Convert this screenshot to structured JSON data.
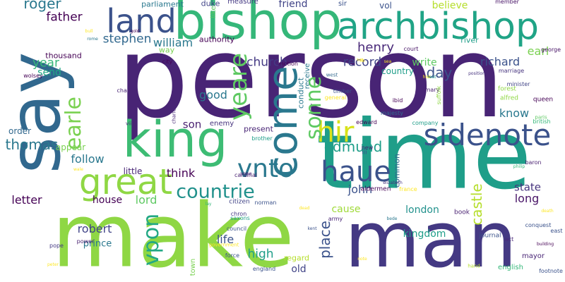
{
  "words": [
    {
      "text": "person",
      "color": "#482475"
    },
    {
      "text": "time",
      "color": "#1f9e89"
    },
    {
      "text": "make",
      "color": "#8fd744"
    },
    {
      "text": "man",
      "color": "#443983"
    },
    {
      "text": "say",
      "color": "#31688e"
    },
    {
      "text": "bishop",
      "color": "#35b779"
    },
    {
      "text": "king",
      "color": "#3dbc74"
    },
    {
      "text": "archbishop",
      "color": "#20a486"
    },
    {
      "text": "land",
      "color": "#3b528b"
    },
    {
      "text": "great",
      "color": "#8fd744"
    },
    {
      "text": "sidenote",
      "color": "#3b528b"
    },
    {
      "text": "come",
      "color": "#2a788e"
    },
    {
      "text": "haue",
      "color": "#3b528b"
    },
    {
      "text": "vnto",
      "color": "#2a788e"
    },
    {
      "text": "countrie",
      "color": "#21918c"
    },
    {
      "text": "hir",
      "color": "#d8e219"
    },
    {
      "text": "yeare",
      "color": "#5ec962"
    },
    {
      "text": "sonne",
      "color": "#5ec962"
    },
    {
      "text": "earle",
      "color": "#7ad151"
    },
    {
      "text": "vpon",
      "color": "#22a884"
    },
    {
      "text": "thomas",
      "color": "#2a788e"
    },
    {
      "text": "stephen",
      "color": "#31688e"
    },
    {
      "text": "william",
      "color": "#2a788e"
    },
    {
      "text": "church",
      "color": "#443983"
    },
    {
      "text": "record",
      "color": "#414487"
    },
    {
      "text": "write",
      "color": "#5ec962"
    },
    {
      "text": "richard",
      "color": "#3b528b"
    },
    {
      "text": "henry",
      "color": "#482878"
    },
    {
      "text": "earl",
      "color": "#7ad151"
    },
    {
      "text": "believe",
      "color": "#b5de2b"
    },
    {
      "text": "roger",
      "color": "#2a788e"
    },
    {
      "text": "father",
      "color": "#440154"
    },
    {
      "text": "year",
      "color": "#35b779"
    },
    {
      "text": "send",
      "color": "#22a884"
    },
    {
      "text": "good",
      "color": "#2a788e"
    },
    {
      "text": "son",
      "color": "#481f70"
    },
    {
      "text": "edmund",
      "color": "#1f9e89"
    },
    {
      "text": "john",
      "color": "#3b528b"
    },
    {
      "text": "day",
      "color": "#3b528b"
    },
    {
      "text": "know",
      "color": "#2a788e"
    },
    {
      "text": "state",
      "color": "#46337e"
    },
    {
      "text": "follow",
      "color": "#2a788e"
    },
    {
      "text": "think",
      "color": "#440154"
    },
    {
      "text": "lord",
      "color": "#5ec962"
    },
    {
      "text": "letter",
      "color": "#440154"
    },
    {
      "text": "house",
      "color": "#440154"
    },
    {
      "text": "robert",
      "color": "#414487"
    },
    {
      "text": "london",
      "color": "#21918c"
    },
    {
      "text": "cause",
      "color": "#a0da39"
    },
    {
      "text": "castle",
      "color": "#b5de2b"
    },
    {
      "text": "long",
      "color": "#481467"
    },
    {
      "text": "life",
      "color": "#3b528b"
    },
    {
      "text": "place",
      "color": "#3b528b"
    },
    {
      "text": "kingdom",
      "color": "#1f9e89"
    },
    {
      "text": "high",
      "color": "#1f9e89"
    },
    {
      "text": "old",
      "color": "#414487"
    },
    {
      "text": "prince",
      "color": "#2a788e"
    },
    {
      "text": "little",
      "color": "#482475"
    },
    {
      "text": "order",
      "color": "#31688e"
    },
    {
      "text": "appear",
      "color": "#7ad151"
    },
    {
      "text": "country",
      "color": "#1f9e89"
    },
    {
      "text": "friend",
      "color": "#414487"
    },
    {
      "text": "parliament",
      "color": "#2a788e"
    },
    {
      "text": "duke",
      "color": "#414487"
    },
    {
      "text": "measure",
      "color": "#443983"
    },
    {
      "text": "sir",
      "color": "#3b528b"
    },
    {
      "text": "vol",
      "color": "#3b528b"
    },
    {
      "text": "river",
      "color": "#1f9e89"
    },
    {
      "text": "thousand",
      "color": "#440154"
    },
    {
      "text": "way",
      "color": "#7ad151"
    },
    {
      "text": "authority",
      "color": "#440154"
    },
    {
      "text": "city",
      "color": "#440154"
    },
    {
      "text": "charter",
      "color": "#482475"
    },
    {
      "text": "present",
      "color": "#482475"
    },
    {
      "text": "brother",
      "color": "#1f9e89"
    },
    {
      "text": "enemy",
      "color": "#46337e"
    },
    {
      "text": "conduct",
      "color": "#2a788e"
    },
    {
      "text": "receive",
      "color": "#2a788e"
    },
    {
      "text": "timber",
      "color": "#3b528b"
    },
    {
      "text": "general",
      "color": "#fde725"
    },
    {
      "text": "common",
      "color": "#31688e"
    },
    {
      "text": "regard",
      "color": "#b5de2b"
    },
    {
      "text": "council",
      "color": "#3b528b"
    },
    {
      "text": "citizen",
      "color": "#414487"
    },
    {
      "text": "cardinal",
      "color": "#481f70"
    },
    {
      "text": "english",
      "color": "#35b779"
    },
    {
      "text": "mayor",
      "color": "#482475"
    },
    {
      "text": "footnote",
      "color": "#3b528b"
    },
    {
      "text": "journal",
      "color": "#3b528b"
    },
    {
      "text": "act",
      "color": "#482878"
    },
    {
      "text": "conquest",
      "color": "#3b528b"
    },
    {
      "text": "baron",
      "color": "#481f70"
    },
    {
      "text": "pope",
      "color": "#443983"
    },
    {
      "text": "power",
      "color": "#481f70"
    },
    {
      "text": "force",
      "color": "#3b528b"
    },
    {
      "text": "england",
      "color": "#3b528b"
    },
    {
      "text": "town",
      "color": "#7ad151"
    },
    {
      "text": "government",
      "color": "#fde725"
    },
    {
      "text": "forest",
      "color": "#8fd744"
    },
    {
      "text": "alfred",
      "color": "#8fd744"
    },
    {
      "text": "queen",
      "color": "#440154"
    },
    {
      "text": "minister",
      "color": "#414487"
    },
    {
      "text": "marriage",
      "color": "#46337e"
    },
    {
      "text": "mary",
      "color": "#481f70"
    },
    {
      "text": "suffolk",
      "color": "#8fd744"
    },
    {
      "text": "british",
      "color": "#35b779"
    },
    {
      "text": "member",
      "color": "#481467"
    },
    {
      "text": "george",
      "color": "#481467"
    },
    {
      "text": "wolsey",
      "color": "#440154"
    },
    {
      "text": "motion",
      "color": "#440154"
    },
    {
      "text": "majesty",
      "color": "#31688e"
    },
    {
      "text": "company",
      "color": "#1f9e89"
    },
    {
      "text": "edward",
      "color": "#440154"
    },
    {
      "text": "ibid",
      "color": "#440154"
    },
    {
      "text": "court",
      "color": "#481467"
    },
    {
      "text": "book",
      "color": "#481f70"
    },
    {
      "text": "army",
      "color": "#482475"
    },
    {
      "text": "norman",
      "color": "#3b528b"
    },
    {
      "text": "chron",
      "color": "#443983"
    },
    {
      "text": "saxons",
      "color": "#1f9e89"
    },
    {
      "text": "france",
      "color": "#fde725"
    },
    {
      "text": "aldermen",
      "color": "#440154"
    },
    {
      "text": "iii",
      "color": "#3b528b"
    },
    {
      "text": "new",
      "color": "#481f70"
    },
    {
      "text": "anne",
      "color": "#482475"
    },
    {
      "text": "charles",
      "color": "#482878"
    },
    {
      "text": "viii",
      "color": "#482878"
    },
    {
      "text": "west",
      "color": "#31688e"
    },
    {
      "text": "like",
      "color": "#5ec962"
    },
    {
      "text": "hand",
      "color": "#b5de2b"
    },
    {
      "text": "east",
      "color": "#3b528b"
    },
    {
      "text": "paris",
      "color": "#5ec962"
    },
    {
      "text": "philip",
      "color": "#35b779"
    },
    {
      "text": "elizabeth",
      "color": "#46337e"
    },
    {
      "text": "building",
      "color": "#440154"
    },
    {
      "text": "position",
      "color": "#46337e"
    },
    {
      "text": "death",
      "color": "#fde725"
    },
    {
      "text": "rome",
      "color": "#2a788e"
    },
    {
      "text": "lay",
      "color": "#35b779"
    },
    {
      "text": "seat",
      "color": "#21918c"
    },
    {
      "text": "note",
      "color": "#fde725"
    },
    {
      "text": "dead",
      "color": "#fde725"
    },
    {
      "text": "peter",
      "color": "#fde725"
    },
    {
      "text": "kent",
      "color": "#3b528b"
    },
    {
      "text": "bull",
      "color": "#fde725"
    },
    {
      "text": "gold",
      "color": "#440154"
    },
    {
      "text": "wale",
      "color": "#fde725"
    },
    {
      "text": "bede",
      "color": "#2a788e"
    },
    {
      "text": "hist",
      "color": "#fde725"
    },
    {
      "text": "lib",
      "color": "#fde725"
    },
    {
      "text": "sea",
      "color": "#fde725"
    },
    {
      "text": "bob",
      "color": "#fde725"
    }
  ]
}
